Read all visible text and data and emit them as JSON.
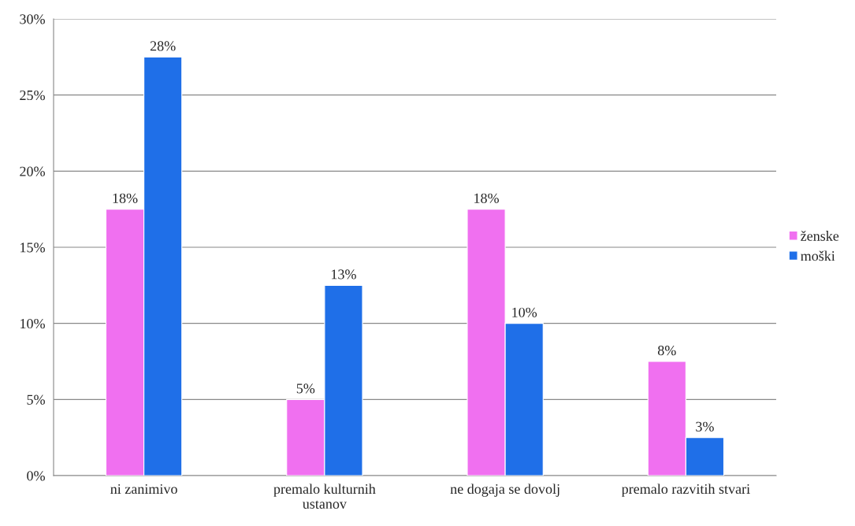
{
  "chart_data": {
    "type": "bar",
    "categories": [
      "ni zanimivo",
      "premalo kulturnih\nustanov",
      "ne dogaja se dovolj",
      "premalo razvitih stvari"
    ],
    "series": [
      {
        "name": "ženske",
        "color": "#f070f0",
        "values": [
          17.5,
          5,
          17.5,
          7.5
        ],
        "value_labels": [
          "18%",
          "5%",
          "18%",
          "8%"
        ]
      },
      {
        "name": "moški",
        "color": "#1f6fe8",
        "values": [
          27.5,
          12.5,
          10,
          2.5
        ],
        "value_labels": [
          "28%",
          "13%",
          "10%",
          "3%"
        ]
      }
    ],
    "ylim": [
      0,
      30
    ],
    "yticks": [
      {
        "value": 0,
        "label": "0%"
      },
      {
        "value": 5,
        "label": "5%"
      },
      {
        "value": 10,
        "label": "10%"
      },
      {
        "value": 15,
        "label": "15%"
      },
      {
        "value": 20,
        "label": "20%"
      },
      {
        "value": 25,
        "label": "25%"
      },
      {
        "value": 30,
        "label": "30%"
      }
    ],
    "grid": "y",
    "legend": "right"
  }
}
